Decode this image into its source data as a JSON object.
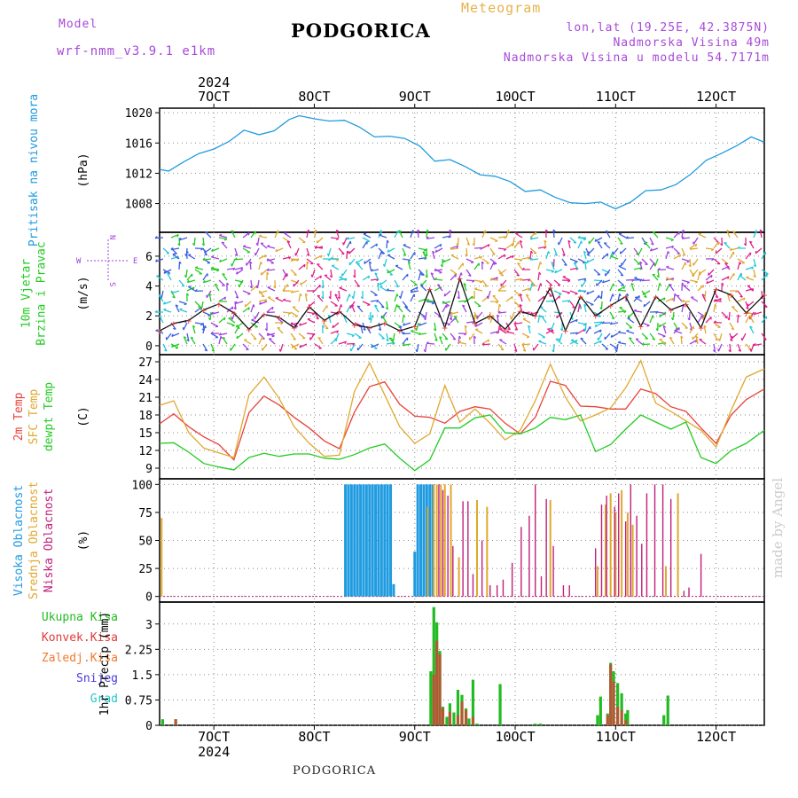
{
  "header": {
    "model_label": "Model",
    "model_name": "wrf-nmm_v3.9.1 e1km",
    "title": "PODGORICA",
    "meteogram": "Meteogram",
    "location": "lon,lat (19.25E, 42.3875N)",
    "elevation": "Nadmorska Visina 49m",
    "model_elevation": "Nadmorska Visina u modelu 54.7171m",
    "footer_title": "PODGORICA",
    "watermark": "made by Angel",
    "year": "2024"
  },
  "colors": {
    "pressure": "#1f9be0",
    "wind_green": "#22cc22",
    "wind_cyan": "#22c8d8",
    "wind_blue": "#3a5fe0",
    "wind_purple": "#a040e0",
    "wind_orange": "#e0a830",
    "wind_magenta": "#e0208a",
    "temp2m": "#e8423a",
    "sfc": "#e0a830",
    "dew": "#22cc22",
    "high": "#1f9be0",
    "mid": "#e0a830",
    "low": "#c0207a",
    "total": "#22bb22",
    "convective": "#e03a3a",
    "frozen": "#f07a30",
    "snow": "#4a3ad8",
    "hail": "#22c8c8"
  },
  "chart_data": {
    "type": "meteogram",
    "x_ticks_top": [
      "7OCT",
      "8OCT",
      "9OCT",
      "10OCT",
      "11OCT",
      "12OCT"
    ],
    "x_ticks_bottom": [
      "7OCT",
      "8OCT",
      "9OCT",
      "10OCT",
      "11OCT",
      "12OCT"
    ],
    "x_range_days": [
      6.46,
      12.48
    ],
    "panels": [
      {
        "id": "pressure",
        "ylabel_lines": [
          "Pritisak na nivou mora"
        ],
        "unit": "(hPa)",
        "yticks": [
          1008,
          1012,
          1016,
          1020
        ],
        "ylim": [
          1004.2,
          1020.6
        ],
        "series": [
          {
            "x": [
              6.46,
              6.55,
              6.7,
              6.85,
              7.0,
              7.15,
              7.3,
              7.45,
              7.6,
              7.75,
              7.85,
              8.0,
              8.15,
              8.3,
              8.45,
              8.6,
              8.75,
              8.9,
              9.05,
              9.2,
              9.35,
              9.5,
              9.65,
              9.8,
              9.95,
              10.1,
              10.25,
              10.4,
              10.55,
              10.7,
              10.85,
              11.0,
              11.15,
              11.3,
              11.45,
              11.6,
              11.75,
              11.9,
              12.05,
              12.2,
              12.35,
              12.48
            ],
            "y": [
              1012.5,
              1012.3,
              1013.5,
              1014.6,
              1015.2,
              1016.2,
              1017.7,
              1017.1,
              1017.6,
              1019.1,
              1019.6,
              1019.2,
              1018.9,
              1019.0,
              1018.1,
              1016.8,
              1016.9,
              1016.6,
              1015.6,
              1013.6,
              1013.8,
              1012.9,
              1011.8,
              1011.6,
              1010.9,
              1009.6,
              1009.8,
              1008.8,
              1008.1,
              1008.0,
              1008.2,
              1007.3,
              1008.2,
              1009.7,
              1009.8,
              1010.5,
              1011.9,
              1013.7,
              1014.6,
              1015.6,
              1016.8,
              1016.1
            ]
          }
        ]
      },
      {
        "id": "wind",
        "ylabel_lines": [
          "10m Vjetar",
          "Brzina i Pravac"
        ],
        "unit": "(m/s)",
        "compass": {
          "n": "N",
          "s": "S",
          "w": "W",
          "e": "E"
        },
        "yticks": [
          0,
          2,
          4,
          6
        ],
        "ylim": [
          -0.6,
          7.6
        ],
        "series": [
          {
            "name": "speed",
            "x": [
              6.46,
              6.6,
              6.75,
              6.9,
              7.05,
              7.2,
              7.35,
              7.5,
              7.65,
              7.8,
              7.95,
              8.1,
              8.25,
              8.4,
              8.55,
              8.7,
              8.85,
              9.0,
              9.15,
              9.3,
              9.45,
              9.6,
              9.75,
              9.9,
              10.05,
              10.2,
              10.35,
              10.5,
              10.65,
              10.8,
              10.95,
              11.1,
              11.25,
              11.4,
              11.55,
              11.7,
              11.85,
              12.0,
              12.15,
              12.3,
              12.48
            ],
            "y": [
              1.0,
              1.5,
              1.7,
              2.4,
              2.8,
              2.2,
              1.1,
              2.1,
              1.9,
              1.2,
              2.6,
              1.7,
              2.3,
              1.4,
              1.2,
              1.5,
              1.0,
              1.3,
              3.8,
              1.2,
              4.5,
              1.5,
              2.0,
              1.1,
              2.3,
              2.0,
              3.9,
              1.0,
              3.3,
              2.0,
              2.7,
              3.3,
              1.3,
              3.3,
              2.4,
              2.8,
              1.2,
              3.8,
              3.4,
              2.2,
              3.4
            ]
          }
        ]
      },
      {
        "id": "temperature",
        "ylabel_lines": [
          "2m Temp",
          "SFC Temp",
          "dewpt Temp"
        ],
        "unit": "(C)",
        "yticks": [
          9,
          12,
          15,
          18,
          21,
          24,
          27
        ],
        "ylim": [
          7.2,
          28.2
        ],
        "series": [
          {
            "name": "2m Temp",
            "x": [
              6.46,
              6.6,
              6.75,
              6.9,
              7.05,
              7.2,
              7.35,
              7.5,
              7.65,
              7.8,
              7.95,
              8.1,
              8.25,
              8.4,
              8.55,
              8.7,
              8.85,
              9.0,
              9.15,
              9.3,
              9.45,
              9.6,
              9.75,
              9.9,
              10.05,
              10.2,
              10.35,
              10.5,
              10.65,
              10.8,
              10.95,
              11.1,
              11.25,
              11.4,
              11.55,
              11.7,
              11.85,
              12.0,
              12.15,
              12.3,
              12.48
            ],
            "y": [
              16.5,
              18.2,
              16.0,
              14.3,
              13.0,
              10.4,
              18.4,
              21.2,
              19.7,
              17.6,
              15.8,
              13.6,
              12.3,
              18.5,
              22.8,
              23.6,
              19.8,
              17.8,
              17.6,
              16.6,
              18.6,
              19.4,
              19.0,
              16.6,
              14.8,
              17.6,
              23.7,
              23.0,
              19.5,
              19.4,
              19.0,
              19.0,
              22.4,
              21.6,
              19.4,
              18.6,
              15.8,
              13.2,
              18.0,
              20.6,
              22.4
            ]
          },
          {
            "name": "SFC Temp",
            "x": [
              6.46,
              6.6,
              6.75,
              6.9,
              7.05,
              7.2,
              7.35,
              7.5,
              7.65,
              7.8,
              7.95,
              8.1,
              8.25,
              8.4,
              8.55,
              8.7,
              8.85,
              9.0,
              9.15,
              9.3,
              9.45,
              9.6,
              9.75,
              9.9,
              10.05,
              10.2,
              10.35,
              10.5,
              10.65,
              10.8,
              10.95,
              11.1,
              11.25,
              11.4,
              11.55,
              11.7,
              11.85,
              12.0,
              12.15,
              12.3,
              12.48
            ],
            "y": [
              19.6,
              20.4,
              15.0,
              12.4,
              11.6,
              10.8,
              21.4,
              24.4,
              20.8,
              16.0,
              13.2,
              11.0,
              11.2,
              22.0,
              26.8,
              21.4,
              16.0,
              13.2,
              14.8,
              23.0,
              16.8,
              19.0,
              16.6,
              13.8,
              15.4,
              20.4,
              26.6,
              21.0,
              17.0,
              18.0,
              19.2,
              22.6,
              27.2,
              20.0,
              18.6,
              17.0,
              15.4,
              12.6,
              18.8,
              24.4,
              25.8
            ]
          },
          {
            "name": "dewpt Temp",
            "x": [
              6.46,
              6.6,
              6.75,
              6.9,
              7.05,
              7.2,
              7.35,
              7.5,
              7.65,
              7.8,
              7.95,
              8.1,
              8.25,
              8.4,
              8.55,
              8.7,
              8.85,
              9.0,
              9.15,
              9.3,
              9.45,
              9.6,
              9.75,
              9.9,
              10.05,
              10.2,
              10.35,
              10.5,
              10.65,
              10.8,
              10.95,
              11.1,
              11.25,
              11.4,
              11.55,
              11.7,
              11.85,
              12.0,
              12.15,
              12.3,
              12.48
            ],
            "y": [
              13.2,
              13.3,
              11.7,
              9.8,
              9.2,
              8.7,
              10.8,
              11.5,
              11.0,
              11.4,
              11.4,
              10.7,
              10.5,
              11.3,
              12.4,
              13.1,
              10.7,
              8.6,
              10.4,
              15.8,
              15.8,
              17.5,
              18.0,
              15.0,
              14.8,
              15.8,
              17.6,
              17.2,
              18.0,
              11.8,
              13.0,
              15.6,
              18.0,
              16.8,
              15.6,
              16.8,
              10.8,
              9.8,
              12.0,
              13.2,
              15.4
            ]
          }
        ]
      },
      {
        "id": "clouds",
        "ylabel_lines": [
          "Visoka Oblacnost",
          "Srednja Oblacnost",
          "Niska Oblacnost"
        ],
        "unit": "(%)",
        "yticks": [
          0,
          25,
          50,
          75,
          100
        ],
        "ylim": [
          -5,
          105
        ],
        "bars": [
          {
            "name": "Visoka Oblacnost",
            "x": [
              8.31,
              8.34,
              8.37,
              8.4,
              8.43,
              8.46,
              8.49,
              8.52,
              8.55,
              8.58,
              8.61,
              8.64,
              8.67,
              8.7,
              8.73,
              8.76,
              8.79,
              9.0,
              9.03,
              9.06,
              9.09,
              9.12,
              9.15,
              9.18
            ],
            "y": [
              100,
              100,
              100,
              100,
              100,
              100,
              100,
              100,
              100,
              100,
              100,
              100,
              100,
              100,
              100,
              100,
              11,
              40,
              100,
              100,
              100,
              100,
              100,
              100
            ]
          },
          {
            "name": "Srednja Oblacnost",
            "x": [
              6.48,
              9.13,
              9.19,
              9.22,
              9.26,
              9.3,
              9.36,
              9.44,
              9.62,
              9.72,
              10.35,
              10.82,
              10.9,
              10.95,
              11.0,
              11.06,
              11.12,
              11.17,
              11.5,
              11.62
            ],
            "y": [
              70,
              80,
              100,
              100,
              100,
              100,
              100,
              35,
              86,
              80,
              86,
              27,
              82,
              92,
              75,
              95,
              75,
              64,
              27,
              92
            ]
          },
          {
            "name": "Niska Oblacnost",
            "x": [
              9.24,
              9.28,
              9.33,
              9.38,
              9.48,
              9.53,
              9.58,
              9.67,
              9.75,
              9.82,
              9.88,
              9.97,
              10.06,
              10.14,
              10.2,
              10.26,
              10.31,
              10.38,
              10.48,
              10.54,
              10.8,
              10.86,
              10.91,
              10.99,
              11.03,
              11.1,
              11.15,
              11.21,
              11.26,
              11.31,
              11.39,
              11.47,
              11.55,
              11.68,
              11.73,
              11.85
            ],
            "y": [
              100,
              95,
              90,
              45,
              85,
              85,
              20,
              50,
              10,
              10,
              15,
              30,
              62,
              72,
              100,
              18,
              87,
              45,
              10,
              10,
              43,
              82,
              90,
              80,
              92,
              67,
              100,
              72,
              47,
              92,
              100,
              100,
              87,
              5,
              8,
              38
            ]
          }
        ]
      },
      {
        "id": "precip",
        "ylabel_lines": [
          "Ukupna Kisa",
          "Konvek.Kisa",
          "Zaledj.Kisa",
          "Snijeg",
          "Grad"
        ],
        "unit": "1hr Precip (mm)",
        "yticks": [
          0,
          0.75,
          1.5,
          2.25,
          3
        ],
        "yticklabels": [
          "0",
          "0.75",
          "1.5",
          "2.25",
          "3"
        ],
        "ylim": [
          0,
          3.65
        ],
        "bars": [
          {
            "name": "Ukupna Kisa",
            "x": [
              6.49,
              6.62,
              9.16,
              9.19,
              9.22,
              9.25,
              9.28,
              9.32,
              9.35,
              9.39,
              9.43,
              9.47,
              9.51,
              9.54,
              9.58,
              9.62,
              9.85,
              10.2,
              10.25,
              10.82,
              10.85,
              10.92,
              10.95,
              10.98,
              11.02,
              11.06,
              11.1,
              11.12,
              11.48,
              11.52
            ],
            "y": [
              0.18,
              0.18,
              1.6,
              3.5,
              3.05,
              2.2,
              0.55,
              0.25,
              0.65,
              0.38,
              1.05,
              0.9,
              0.5,
              0.2,
              1.35,
              0.05,
              1.22,
              0.05,
              0.05,
              0.3,
              0.85,
              0.35,
              1.85,
              1.6,
              1.25,
              0.95,
              0.35,
              0.45,
              0.3,
              0.88
            ]
          },
          {
            "name": "Konvek.Kisa",
            "x": [
              6.62,
              9.19,
              9.22,
              9.25,
              9.28,
              9.35,
              9.43,
              9.47,
              9.51,
              9.58,
              10.92,
              10.95,
              10.98,
              11.02,
              11.06,
              11.1
            ],
            "y": [
              0.18,
              1.5,
              2.5,
              2.1,
              0.5,
              0.4,
              0.3,
              0.7,
              0.45,
              0.25,
              0.3,
              1.8,
              1.3,
              0.55,
              0.45,
              0.15
            ]
          }
        ]
      }
    ]
  }
}
